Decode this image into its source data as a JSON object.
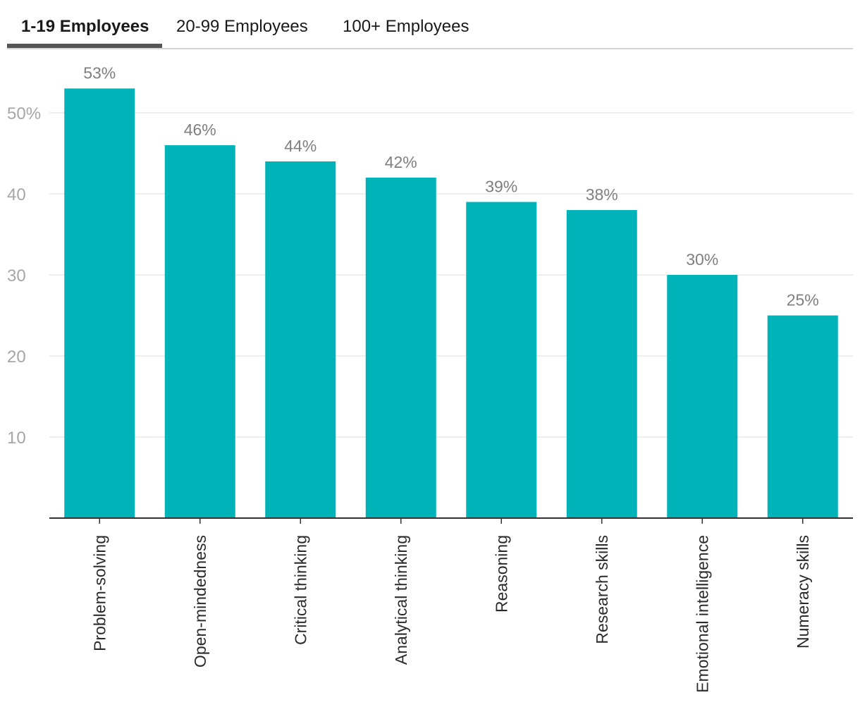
{
  "tabs": [
    {
      "label": "1-19 Employees",
      "active": true
    },
    {
      "label": "20-99 Employees",
      "active": false
    },
    {
      "label": "100+ Employees",
      "active": false
    }
  ],
  "colors": {
    "bar": "#00b3b9",
    "grid": "#e3e3e3",
    "axis": "#333333"
  },
  "chart_data": {
    "type": "bar",
    "categories": [
      "Problem-solving",
      "Open-mindedness",
      "Critical thinking",
      "Analytical thinking",
      "Reasoning",
      "Research skills",
      "Emotional intelligence",
      "Numeracy skills"
    ],
    "values": [
      53,
      46,
      44,
      42,
      39,
      38,
      30,
      25
    ],
    "data_labels": [
      "53%",
      "46%",
      "44%",
      "42%",
      "39%",
      "38%",
      "30%",
      "25%"
    ],
    "yticks": [
      10,
      20,
      30,
      40,
      50
    ],
    "ytick_labels": [
      "10",
      "20",
      "30",
      "40",
      "50%"
    ],
    "ylim": [
      0,
      55
    ],
    "title": "",
    "xlabel": "",
    "ylabel": "",
    "grid": true
  }
}
